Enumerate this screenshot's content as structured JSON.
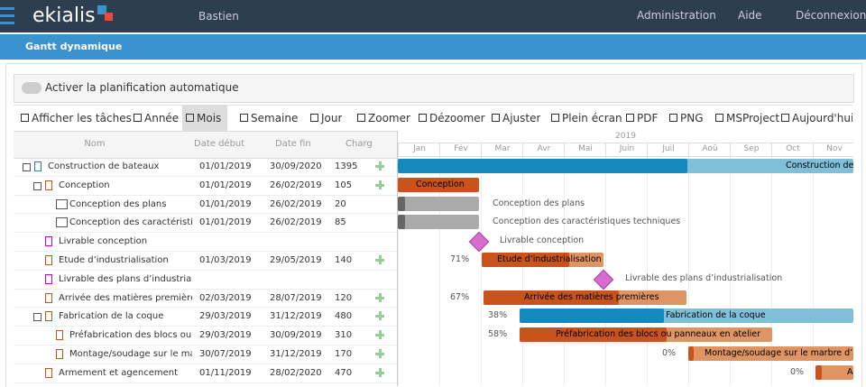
{
  "navbar": {
    "brand": "ekialis",
    "user": "Bastien",
    "links": [
      "Administration",
      "Aide",
      "Déconnexion"
    ]
  },
  "panel": {
    "title": "Gantt dynamique",
    "toggle_label": "Activer la planification automatique"
  },
  "toolbar": [
    "Afficher les tâches",
    "Année",
    "Mois",
    "Semaine",
    "Jour",
    "Zoomer",
    "Dézoomer",
    "Ajuster",
    "Plein écran",
    "PDF",
    "PNG",
    "MSProject",
    "Aujourd'hui"
  ],
  "grid": {
    "columns": [
      "Nom",
      "Date début",
      "Date fin",
      "Charge"
    ],
    "rows": [
      {
        "name": "Construction de bateaux",
        "start": "01/01/2019",
        "end": "30/09/2020",
        "charge": "1395",
        "bar_label": "Construction de"
      },
      {
        "name": "Conception",
        "start": "01/01/2019",
        "end": "26/02/2019",
        "charge": "105",
        "bar_label": "Conception"
      },
      {
        "name": "Conception des plans",
        "start": "01/01/2019",
        "end": "26/02/2019",
        "charge": "20",
        "bar_label": "Conception des plans"
      },
      {
        "name": "Conception des caractéristiques",
        "start": "01/01/2019",
        "end": "26/02/2019",
        "charge": "85",
        "bar_label": "Conception des caractéristiques techniques"
      },
      {
        "name": "Livrable conception",
        "bar_label": "Livrable conception"
      },
      {
        "name": "Etude d’industrialisation",
        "start": "01/03/2019",
        "end": "29/05/2019",
        "charge": "140",
        "progress": "71%",
        "bar_label": "Etude d’industrialisation"
      },
      {
        "name": "Livrable des plans d’industrialisati",
        "bar_label": "Livrable des plans d’industrialisation"
      },
      {
        "name": "Arrivée des matières premières",
        "start": "02/03/2019",
        "end": "28/07/2019",
        "charge": "120",
        "progress": "67%",
        "bar_label": "Arrivée des matières premières"
      },
      {
        "name": "Fabrication de la coque",
        "start": "29/03/2019",
        "end": "31/12/2019",
        "charge": "480",
        "progress": "38%",
        "bar_label": "Fabrication de la coque"
      },
      {
        "name": "Préfabrication des blocs ou pan",
        "start": "29/03/2019",
        "end": "30/09/2019",
        "charge": "310",
        "progress": "58%",
        "bar_label": "Préfabrication des blocs ou panneaux en atelier"
      },
      {
        "name": "Montage/soudage sur le marbre",
        "start": "30/07/2019",
        "end": "31/12/2019",
        "charge": "170",
        "progress": "0%",
        "bar_label": "Montage/soudage sur le marbre d’asse"
      },
      {
        "name": "Armement et agencement",
        "start": "01/11/2019",
        "end": "28/02/2020",
        "charge": "470",
        "progress": "0%",
        "bar_label": "A"
      }
    ]
  },
  "timeline": {
    "year": "2019",
    "months": [
      "Jan",
      "Fév",
      "Mar",
      "Avr",
      "Mai",
      "Juin",
      "Juil",
      "Aoû",
      "Sep",
      "Oct",
      "Nov"
    ]
  }
}
